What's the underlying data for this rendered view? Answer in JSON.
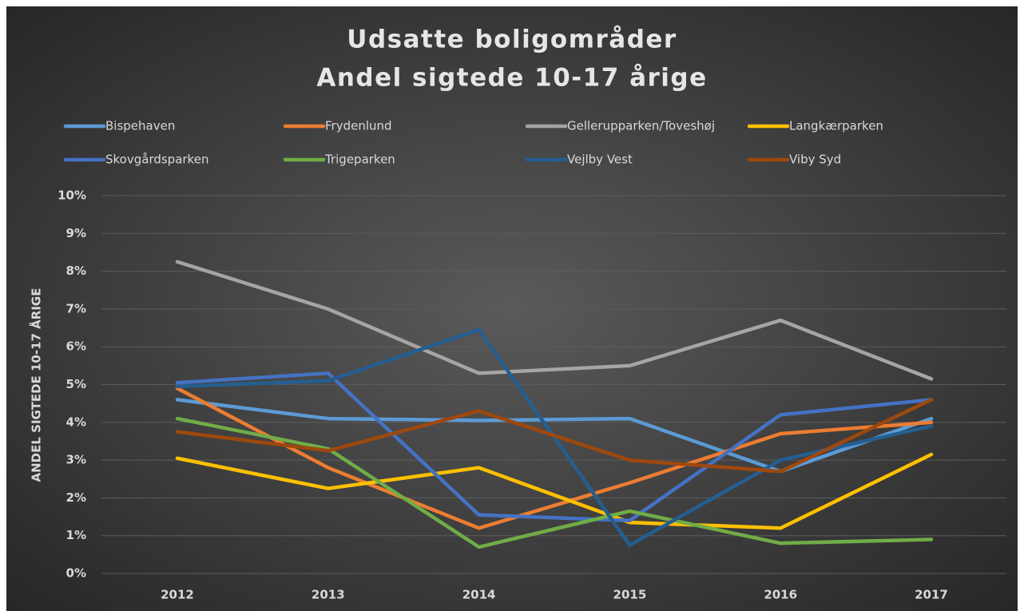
{
  "chart_data": {
    "type": "line",
    "title": [
      "Udsatte boligområder",
      "Andel sigtede 10-17 årige"
    ],
    "y_label": "ANDEL SIGTEDE 10-17 ÅRIGE",
    "categories": [
      "2012",
      "2013",
      "2014",
      "2015",
      "2016",
      "2017"
    ],
    "series": [
      {
        "name": "Bispehaven",
        "color": "#5b9bd5",
        "values": [
          4.6,
          4.1,
          4.05,
          4.1,
          2.7,
          4.1
        ]
      },
      {
        "name": "Frydenlund",
        "color": "#ed7d31",
        "values": [
          4.9,
          2.8,
          1.2,
          2.4,
          3.7,
          4.0
        ]
      },
      {
        "name": "Gellerupparken/Toveshøj",
        "color": "#a5a5a5",
        "values": [
          8.25,
          7.0,
          5.3,
          5.5,
          6.7,
          5.15
        ]
      },
      {
        "name": "Langkærparken",
        "color": "#ffc000",
        "values": [
          3.05,
          2.25,
          2.8,
          1.35,
          1.2,
          3.15
        ]
      },
      {
        "name": "Skovgårdsparken",
        "color": "#4472c4",
        "values": [
          5.05,
          5.3,
          1.55,
          1.4,
          4.2,
          4.6
        ]
      },
      {
        "name": "Trigeparken",
        "color": "#70ad47",
        "values": [
          4.1,
          3.3,
          0.7,
          1.65,
          0.8,
          0.9
        ]
      },
      {
        "name": "Vejlby Vest",
        "color": "#255e91",
        "values": [
          4.95,
          5.1,
          6.45,
          0.75,
          3.0,
          3.9
        ]
      },
      {
        "name": "Viby Syd",
        "color": "#9e480e",
        "values": [
          3.75,
          3.25,
          4.3,
          3.0,
          2.7,
          4.6
        ]
      }
    ],
    "ylim": [
      0,
      10
    ],
    "yticks": [
      {
        "value": 0,
        "label": "0%"
      },
      {
        "value": 1,
        "label": "1%"
      },
      {
        "value": 2,
        "label": "2%"
      },
      {
        "value": 3,
        "label": "3%"
      },
      {
        "value": 4,
        "label": "4%"
      },
      {
        "value": 5,
        "label": "5%"
      },
      {
        "value": 6,
        "label": "6%"
      },
      {
        "value": 7,
        "label": "7%"
      },
      {
        "value": 8,
        "label": "8%"
      },
      {
        "value": 9,
        "label": "9%"
      },
      {
        "value": 10,
        "label": "10%"
      }
    ],
    "grid": true,
    "legend": "top"
  }
}
